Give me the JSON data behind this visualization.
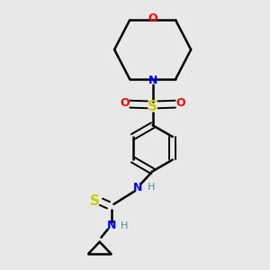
{
  "background_color": "#e8e8e8",
  "bond_color": "#000000",
  "N_color": "#0000ff",
  "O_color": "#ff0000",
  "S_color": "#cccc00",
  "NH_color": "#4a9090",
  "line_width": 1.8,
  "figsize": [
    3.0,
    3.0
  ],
  "dpi": 100,
  "xlim": [
    0.15,
    0.85
  ],
  "ylim": [
    0.05,
    0.95
  ]
}
